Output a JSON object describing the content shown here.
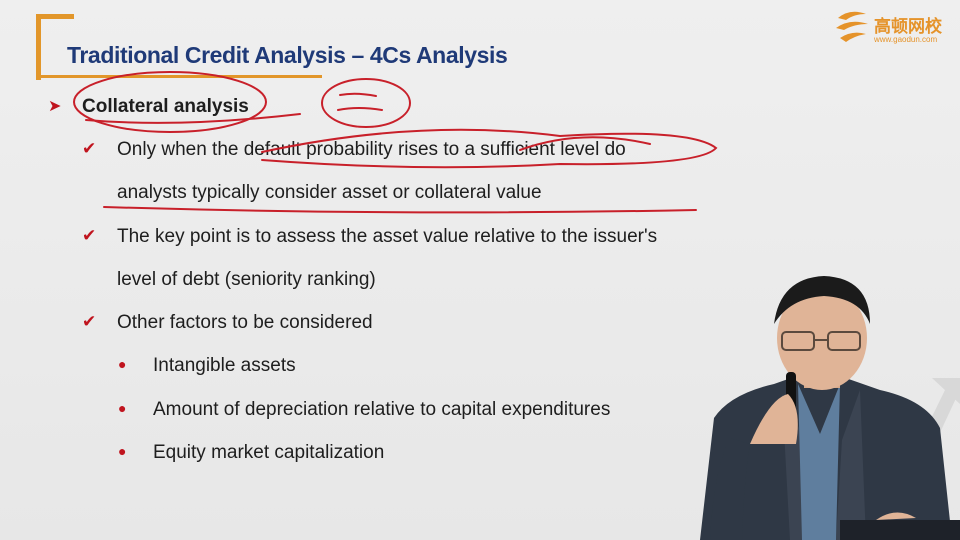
{
  "slide": {
    "title": "Traditional Credit Analysis – 4Cs Analysis",
    "logo": {
      "name": "高顿网校",
      "url": "www.gaodun.com"
    },
    "heading": "Collateral analysis",
    "checks": [
      {
        "lines": [
          "Only when the default probability rises to a sufficient level do",
          "analysts typically consider asset or collateral value"
        ]
      },
      {
        "lines": [
          "The key point is to assess the asset value relative to the issuer's",
          "level of debt (seniority ranking)"
        ]
      },
      {
        "lines": [
          "Other factors to be considered"
        ]
      }
    ],
    "bullets": [
      "Intangible assets",
      "Amount of depreciation relative to capital expenditures",
      "Equity market capitalization"
    ]
  },
  "colors": {
    "title": "#1f3a78",
    "accent_orange": "#e2962a",
    "marker_red": "#c0141e",
    "ink_red": "#c8202a"
  }
}
